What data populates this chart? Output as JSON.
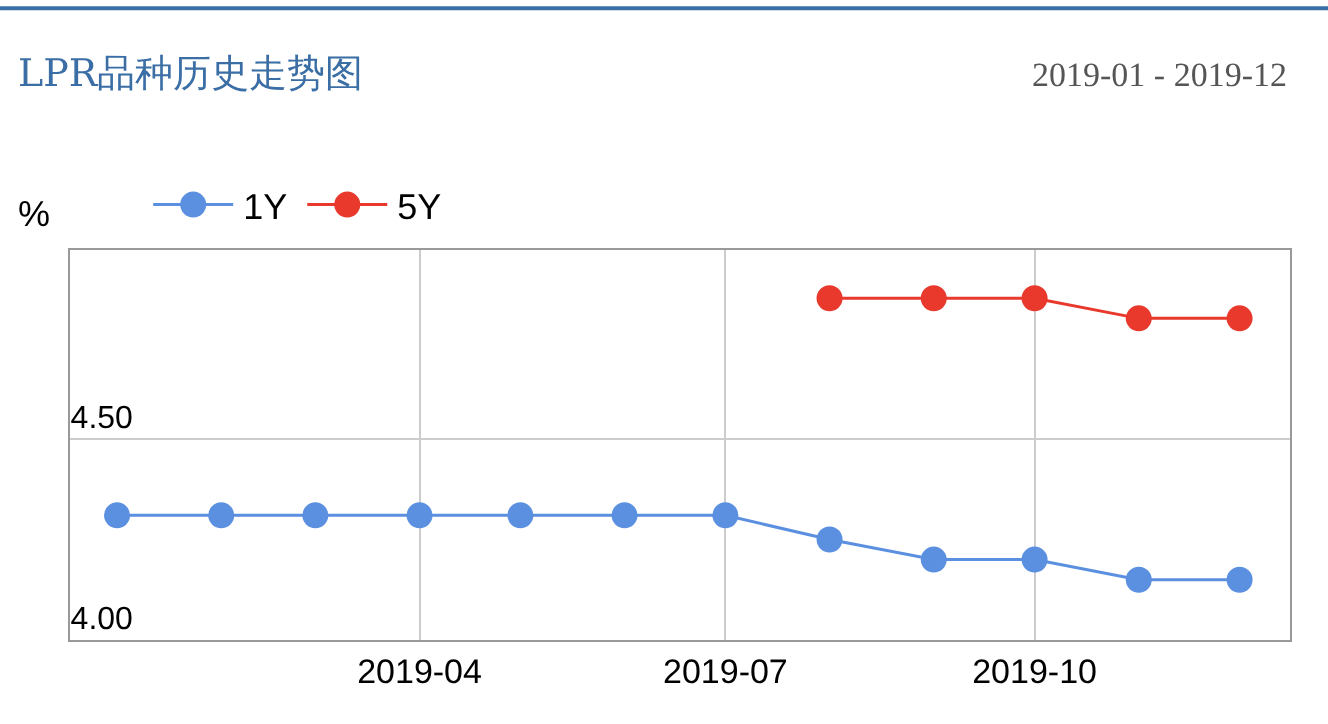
{
  "chart_data": {
    "type": "line",
    "title": "LPR品种历史走势图",
    "subtitle": "2019-01 - 2019-12",
    "ylabel": "%",
    "x": [
      "2019-01",
      "2019-02",
      "2019-03",
      "2019-04",
      "2019-05",
      "2019-06",
      "2019-07",
      "2019-08",
      "2019-09",
      "2019-10",
      "2019-11",
      "2019-12"
    ],
    "series": [
      {
        "name": "1Y",
        "color": "#5b8fe0",
        "values": [
          4.31,
          4.31,
          4.31,
          4.31,
          4.31,
          4.31,
          4.31,
          4.25,
          4.2,
          4.2,
          4.15,
          4.15
        ]
      },
      {
        "name": "5Y",
        "color": "#e8392c",
        "values": [
          null,
          null,
          null,
          null,
          null,
          null,
          null,
          4.85,
          4.85,
          4.85,
          4.8,
          4.8
        ]
      }
    ],
    "xlim": [
      "2018-12-18",
      "2019-12-16"
    ],
    "xticks": [
      {
        "value": "2019-04",
        "label": "2019-04"
      },
      {
        "value": "2019-07",
        "label": "2019-07"
      },
      {
        "value": "2019-10",
        "label": "2019-10"
      }
    ],
    "ylim": [
      4.0,
      4.97
    ],
    "yticks": [
      {
        "value": 4.0,
        "label": "4.00"
      },
      {
        "value": 4.5,
        "label": "4.50"
      }
    ],
    "grid": true,
    "legend": "top left",
    "marker": "circle",
    "line_style": "solid"
  }
}
